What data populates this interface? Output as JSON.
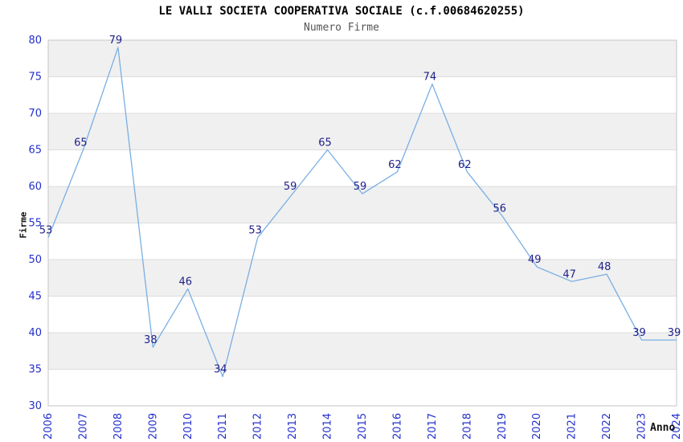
{
  "chart_data": {
    "type": "line",
    "title": "LE VALLI SOCIETA COOPERATIVA SOCIALE (c.f.00684620255)",
    "subtitle": "Numero Firme",
    "xlabel": "Anno",
    "ylabel": "Firme",
    "categories": [
      "2006",
      "2007",
      "2008",
      "2009",
      "2010",
      "2011",
      "2012",
      "2013",
      "2014",
      "2015",
      "2016",
      "2017",
      "2018",
      "2019",
      "2020",
      "2021",
      "2022",
      "2023",
      "2024"
    ],
    "values": [
      53,
      65,
      79,
      38,
      46,
      34,
      53,
      59,
      65,
      59,
      62,
      74,
      62,
      56,
      49,
      47,
      48,
      39,
      39
    ],
    "ylim": [
      30,
      80
    ],
    "ytick_step": 5,
    "grid": "horizontal",
    "legend_position": "none",
    "point_labels_visible": true,
    "colors": {
      "line": "#79afe3",
      "data_label": "#1f1f8a",
      "tick_label": "#2430cc",
      "band_gray": "#f0f0f0",
      "band_white": "#ffffff",
      "gridline": "#dcdcdc",
      "plot_border": "#c6c6c6",
      "title": "#000000",
      "subtitle": "#555555",
      "axis_title": "#111111"
    }
  }
}
